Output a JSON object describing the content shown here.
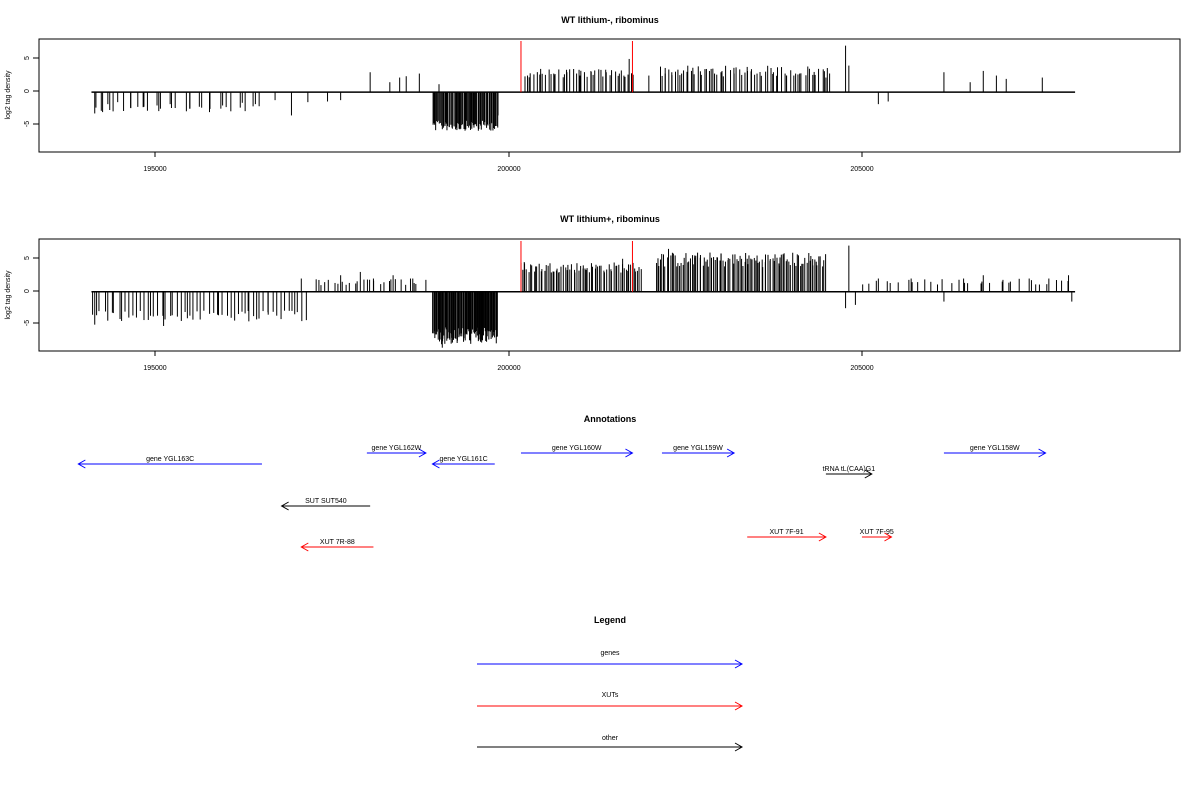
{
  "chart_data": [
    {
      "type": "bar",
      "title": "WT lithium-, ribominus",
      "ylabel": "log2 tag density",
      "xlim": [
        193200,
        210600
      ],
      "ylim": [
        -9,
        8
      ],
      "x_ticks": [
        "195000",
        "200000",
        "205000"
      ],
      "y_ticks": [
        "5",
        "0",
        "-5"
      ],
      "baseline": [
        194000,
        209000
      ],
      "markers": [
        200550,
        202250
      ],
      "spikes": [
        [
          194050,
          -3.2
        ],
        [
          194150,
          -2.8
        ],
        [
          194250,
          -1.8
        ],
        [
          194400,
          -1.5
        ],
        [
          194600,
          -2.4
        ],
        [
          194800,
          -2.2
        ],
        [
          195000,
          -2.0
        ],
        [
          195200,
          -1.8
        ],
        [
          195500,
          -2.5
        ],
        [
          195800,
          -3.0
        ],
        [
          196000,
          -2.0
        ],
        [
          196300,
          -1.6
        ],
        [
          196500,
          -1.8
        ],
        [
          196800,
          -1.2
        ],
        [
          197050,
          -3.5
        ],
        [
          197300,
          -1.5
        ],
        [
          197600,
          -1.4
        ],
        [
          197800,
          -1.2
        ],
        [
          198250,
          3.0
        ],
        [
          198550,
          1.5
        ],
        [
          198700,
          2.2
        ],
        [
          198800,
          2.4
        ],
        [
          199000,
          2.8
        ],
        [
          199300,
          1.2
        ],
        [
          199300,
          -4.0
        ],
        [
          199400,
          -4.5
        ],
        [
          199500,
          -5.0
        ],
        [
          199600,
          -4.8
        ],
        [
          199700,
          -5.2
        ],
        [
          199800,
          -5.5
        ],
        [
          199900,
          -5.8
        ],
        [
          200000,
          -5.0
        ],
        [
          200100,
          -4.5
        ],
        [
          200200,
          -3.5
        ],
        [
          200650,
          2.5
        ],
        [
          200850,
          3.5
        ],
        [
          201050,
          2.8
        ],
        [
          201250,
          3.0
        ],
        [
          201450,
          2.5
        ],
        [
          201650,
          2.6
        ],
        [
          201850,
          3.0
        ],
        [
          202050,
          2.8
        ],
        [
          202200,
          5.0
        ],
        [
          202500,
          2.5
        ],
        [
          202750,
          2.8
        ],
        [
          202850,
          3.0
        ],
        [
          203000,
          2.8
        ],
        [
          203150,
          3.2
        ],
        [
          203300,
          2.6
        ],
        [
          203450,
          3.5
        ],
        [
          203600,
          3.0
        ],
        [
          203800,
          2.8
        ],
        [
          204000,
          3.8
        ],
        [
          204150,
          2.8
        ],
        [
          204400,
          3.0
        ],
        [
          204600,
          2.5
        ],
        [
          204800,
          2.8
        ],
        [
          205000,
          2.6
        ],
        [
          205200,
          2.2
        ],
        [
          205500,
          7.0
        ],
        [
          205550,
          4.0
        ],
        [
          206000,
          -1.8
        ],
        [
          206150,
          -1.4
        ],
        [
          207000,
          3.0
        ],
        [
          207400,
          1.5
        ],
        [
          207600,
          3.2
        ],
        [
          207800,
          2.5
        ],
        [
          207950,
          2.0
        ],
        [
          208500,
          2.2
        ]
      ],
      "bands": [
        [
          194000,
          196600,
          -1.5,
          -3.0,
          25
        ],
        [
          199200,
          200200,
          -3.5,
          -5.8,
          70
        ],
        [
          200600,
          202300,
          1.5,
          3.5,
          40
        ],
        [
          202650,
          205300,
          1.5,
          4.0,
          60
        ]
      ]
    },
    {
      "type": "bar",
      "title": "WT lithium+, ribominus",
      "ylabel": "log2 tag density",
      "xlim": [
        193200,
        210600
      ],
      "ylim": [
        -9,
        8
      ],
      "x_ticks": [
        "195000",
        "200000",
        "205000"
      ],
      "y_ticks": [
        "5",
        "0",
        "-5"
      ],
      "baseline": [
        194000,
        209000
      ],
      "markers": [
        200550,
        202250
      ],
      "spikes": [
        [
          194050,
          -5.0
        ],
        [
          195100,
          -5.2
        ],
        [
          196400,
          -4.5
        ],
        [
          197200,
          2.0
        ],
        [
          197500,
          1.0
        ],
        [
          197800,
          2.5
        ],
        [
          198100,
          3.0
        ],
        [
          198300,
          2.0
        ],
        [
          198600,
          2.5
        ],
        [
          198900,
          2.0
        ],
        [
          199100,
          1.8
        ],
        [
          199350,
          -8.5
        ],
        [
          199500,
          -7.0
        ],
        [
          199700,
          -6.5
        ],
        [
          199900,
          -7.5
        ],
        [
          200050,
          -6.0
        ],
        [
          200600,
          4.5
        ],
        [
          201100,
          3.5
        ],
        [
          201500,
          4.0
        ],
        [
          202100,
          5.0
        ],
        [
          202250,
          4.0
        ],
        [
          202800,
          6.5
        ],
        [
          203200,
          5.5
        ],
        [
          203600,
          5.8
        ],
        [
          204000,
          5.0
        ],
        [
          204500,
          5.2
        ],
        [
          205000,
          4.0
        ],
        [
          205550,
          7.0
        ],
        [
          205500,
          -2.5
        ],
        [
          205650,
          -2.0
        ],
        [
          206000,
          2.0
        ],
        [
          206500,
          2.0
        ],
        [
          206800,
          1.5
        ],
        [
          207000,
          -1.5
        ],
        [
          207300,
          2.0
        ],
        [
          207600,
          2.5
        ],
        [
          207900,
          1.8
        ],
        [
          208300,
          2.0
        ],
        [
          208600,
          2.0
        ],
        [
          208900,
          2.5
        ],
        [
          208950,
          -1.5
        ]
      ],
      "bands": [
        [
          194000,
          197300,
          -2.0,
          -4.5,
          60
        ],
        [
          197400,
          199000,
          0.5,
          2.0,
          25
        ],
        [
          199200,
          200200,
          -4.0,
          -8.0,
          90
        ],
        [
          200550,
          202400,
          2.0,
          4.5,
          70
        ],
        [
          202600,
          205200,
          2.5,
          6.0,
          110
        ],
        [
          205700,
          209000,
          0.5,
          2.0,
          30
        ]
      ]
    }
  ],
  "annotations": {
    "title": "Annotations",
    "genes": [
      {
        "label": "gene YGL163C",
        "start": 196600,
        "end": 193800,
        "row": 1
      },
      {
        "label": "gene YGL162W",
        "start": 198200,
        "end": 199100,
        "row": 0
      },
      {
        "label": "gene YGL161C",
        "start": 200150,
        "end": 199200,
        "row": 1
      },
      {
        "label": "gene YGL160W",
        "start": 200550,
        "end": 202250,
        "row": 0
      },
      {
        "label": "gene YGL159W",
        "start": 202700,
        "end": 203800,
        "row": 0
      },
      {
        "label": "gene YGL158W",
        "start": 207000,
        "end": 208550,
        "row": 0
      }
    ],
    "xuts": [
      {
        "label": "XUT 7R-88",
        "start": 198300,
        "end": 197200,
        "row": 0
      },
      {
        "label": "XUT 7F-91",
        "start": 204000,
        "end": 205200,
        "row": 0
      },
      {
        "label": "XUT 7F-95",
        "start": 205750,
        "end": 206200,
        "row": 0
      }
    ],
    "other": [
      {
        "label": "SUT SUT540",
        "start": 198250,
        "end": 196900,
        "row": 0
      },
      {
        "label": "tRNA tL(CAA)G1",
        "start": 205200,
        "end": 205900,
        "row": 0
      }
    ]
  },
  "legend": {
    "title": "Legend",
    "items": [
      {
        "label": "genes",
        "color": "#0000ff"
      },
      {
        "label": "XUTs",
        "color": "#ff0000"
      },
      {
        "label": "other",
        "color": "#000000"
      }
    ]
  },
  "colors": {
    "gene": "#0000ff",
    "xut": "#ff0000",
    "other": "#000000",
    "marker": "#ff0000",
    "frame": "#000000"
  }
}
